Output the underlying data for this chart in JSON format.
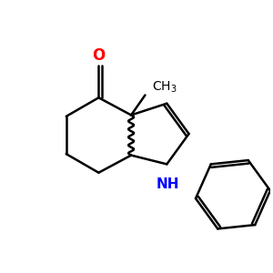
{
  "background": "#ffffff",
  "bond_color": "#000000",
  "O_color": "#ff0000",
  "N_color": "#0000ff",
  "line_width": 1.8,
  "font_size_O": 12,
  "font_size_N": 11,
  "font_size_CH3": 10
}
